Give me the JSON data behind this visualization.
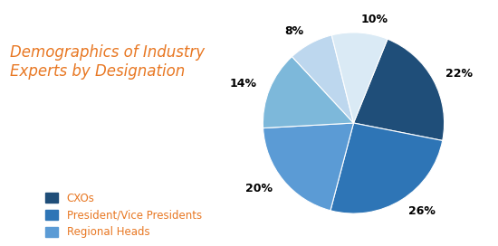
{
  "title": "Demographics of Industry\nExperts by Designation",
  "title_color": "#E87722",
  "title_fontsize": 12,
  "slices": [
    22,
    26,
    20,
    14,
    8,
    10
  ],
  "labels": [
    "22%",
    "26%",
    "20%",
    "14%",
    "8%",
    "10%"
  ],
  "colors": [
    "#1F4E79",
    "#2E75B6",
    "#5B9BD5",
    "#7DB8DA",
    "#BDD7EE",
    "#DAEAF5"
  ],
  "startangle": 68,
  "legend_labels": [
    "CXOs",
    "President/Vice Presidents",
    "Regional Heads"
  ],
  "legend_colors": [
    "#1F4E79",
    "#2E75B6",
    "#5B9BD5"
  ],
  "legend_text_color": "#E87722",
  "background_color": "#FFFFFF",
  "label_fontsize": 9,
  "legend_fontsize": 8.5
}
